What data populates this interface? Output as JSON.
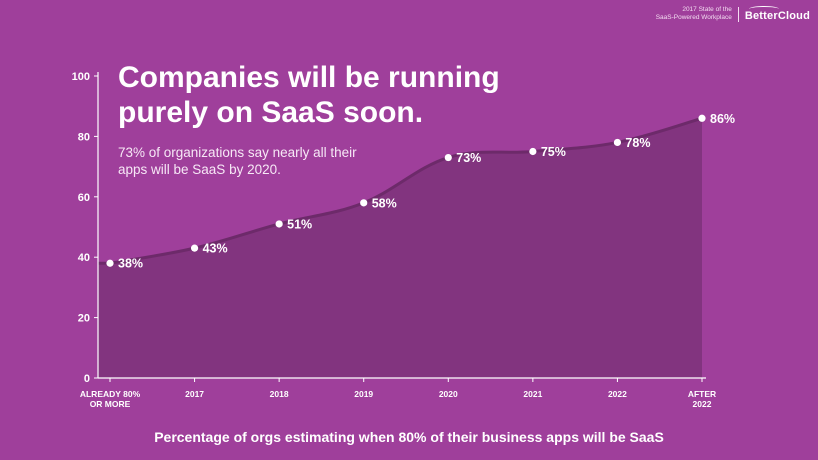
{
  "brand": {
    "subtitle_line1": "2017 State of the",
    "subtitle_line2": "SaaS-Powered Workplace",
    "logo_text": "BetterCloud"
  },
  "headline": {
    "line1": "Companies will be running",
    "line2": "purely on SaaS soon."
  },
  "subtitle": {
    "line1": "73% of organizations say nearly all their",
    "line2": "apps will be SaaS by 2020."
  },
  "chart_data": {
    "type": "area",
    "title": "Companies will be running purely on SaaS soon.",
    "xlabel": "Percentage of orgs estimating when 80% of their business apps will be SaaS",
    "ylabel": "",
    "ylim": [
      0,
      100
    ],
    "yticks": [
      0,
      20,
      40,
      60,
      80,
      100
    ],
    "categories": [
      [
        "ALREADY 80%",
        "OR MORE"
      ],
      [
        "2017"
      ],
      [
        "2018"
      ],
      [
        "2019"
      ],
      [
        "2020"
      ],
      [
        "2021"
      ],
      [
        "2022"
      ],
      [
        "AFTER",
        "2022"
      ]
    ],
    "values": [
      38,
      43,
      51,
      58,
      73,
      75,
      78,
      86
    ],
    "data_labels": [
      "38%",
      "43%",
      "51%",
      "58%",
      "73%",
      "75%",
      "78%",
      "86%"
    ],
    "grid": false,
    "legend": "none",
    "colors": {
      "background": "#9f3f9b",
      "area_fill": "#82347f",
      "line": "#6d2a6a",
      "point": "#ffffff",
      "axis": "#ffffff"
    }
  }
}
